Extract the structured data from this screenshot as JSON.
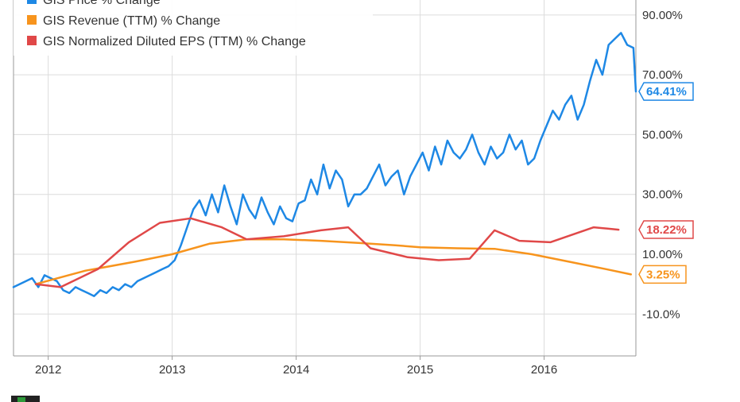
{
  "chart_data": {
    "type": "line",
    "ylim": [
      -24,
      95
    ],
    "xlim": [
      2011.72,
      2016.74
    ],
    "grid": true,
    "legend_placement": "top-left",
    "x_ticks": [
      {
        "value": 2012,
        "label": "2012"
      },
      {
        "value": 2013,
        "label": "2013"
      },
      {
        "value": 2014,
        "label": "2014"
      },
      {
        "value": 2015,
        "label": "2015"
      },
      {
        "value": 2016,
        "label": "2016"
      }
    ],
    "y_ticks": [
      {
        "value": 90,
        "label": "90.00%"
      },
      {
        "value": 70,
        "label": "70.00%"
      },
      {
        "value": 50,
        "label": "50.00%"
      },
      {
        "value": 30,
        "label": "30.00%"
      },
      {
        "value": 10,
        "label": "10.00%"
      },
      {
        "value": -10,
        "label": "-10.0%"
      }
    ],
    "series": [
      {
        "name": "GIS Price % Change",
        "color": "#1e88e5",
        "end_label": "64.41%",
        "x": [
          2011.72,
          2011.77,
          2011.82,
          2011.87,
          2011.92,
          2011.97,
          2012.02,
          2012.07,
          2012.12,
          2012.17,
          2012.22,
          2012.27,
          2012.32,
          2012.37,
          2012.42,
          2012.47,
          2012.52,
          2012.57,
          2012.62,
          2012.67,
          2012.72,
          2012.77,
          2012.82,
          2012.87,
          2012.92,
          2012.97,
          2013.02,
          2013.07,
          2013.12,
          2013.17,
          2013.22,
          2013.27,
          2013.32,
          2013.37,
          2013.42,
          2013.47,
          2013.52,
          2013.57,
          2013.62,
          2013.67,
          2013.72,
          2013.77,
          2013.82,
          2013.87,
          2013.92,
          2013.97,
          2014.02,
          2014.07,
          2014.12,
          2014.17,
          2014.22,
          2014.27,
          2014.32,
          2014.37,
          2014.42,
          2014.47,
          2014.52,
          2014.57,
          2014.62,
          2014.67,
          2014.72,
          2014.77,
          2014.82,
          2014.87,
          2014.92,
          2014.97,
          2015.02,
          2015.07,
          2015.12,
          2015.17,
          2015.22,
          2015.27,
          2015.32,
          2015.37,
          2015.42,
          2015.47,
          2015.52,
          2015.57,
          2015.62,
          2015.67,
          2015.72,
          2015.77,
          2015.82,
          2015.87,
          2015.92,
          2015.97,
          2016.02,
          2016.07,
          2016.12,
          2016.17,
          2016.22,
          2016.27,
          2016.32,
          2016.37,
          2016.42,
          2016.47,
          2016.52,
          2016.57,
          2016.62,
          2016.67,
          2016.72,
          2016.74
        ],
        "y": [
          -1,
          0,
          1,
          2,
          -1,
          3,
          2,
          1,
          -2,
          -3,
          -1,
          -2,
          -3,
          -4,
          -2,
          -3,
          -1,
          -2,
          0,
          -1,
          1,
          2,
          3,
          4,
          5,
          6,
          8,
          13,
          19,
          25,
          28,
          23,
          30,
          24,
          33,
          26,
          20,
          30,
          25,
          22,
          29,
          24,
          20,
          26,
          22,
          21,
          27,
          28,
          35,
          30,
          40,
          32,
          38,
          35,
          26,
          30,
          30,
          32,
          36,
          40,
          33,
          36,
          38,
          30,
          36,
          40,
          44,
          38,
          46,
          40,
          48,
          44,
          42,
          45,
          50,
          44,
          40,
          46,
          42,
          44,
          50,
          45,
          48,
          40,
          42,
          48,
          53,
          58,
          55,
          60,
          63,
          55,
          60,
          68,
          75,
          70,
          80,
          82,
          84,
          80,
          79,
          64.41
        ]
      },
      {
        "name": "GIS Revenue (TTM) % Change",
        "color": "#f7941d",
        "end_label": "3.25%",
        "x": [
          2011.9,
          2012.3,
          2012.7,
          2013.0,
          2013.3,
          2013.6,
          2013.9,
          2014.2,
          2014.5,
          2014.8,
          2015.0,
          2015.3,
          2015.6,
          2015.9,
          2016.2,
          2016.5,
          2016.7
        ],
        "y": [
          0,
          4.5,
          7.5,
          10,
          13.5,
          15,
          15,
          14.5,
          13.8,
          13,
          12.3,
          12,
          11.8,
          10,
          7.5,
          5,
          3.25
        ]
      },
      {
        "name": "GIS Normalized Diluted EPS (TTM) % Change",
        "color": "#e04848",
        "end_label": "18.22%",
        "x": [
          2011.9,
          2012.1,
          2012.4,
          2012.65,
          2012.9,
          2013.15,
          2013.4,
          2013.6,
          2013.9,
          2014.2,
          2014.42,
          2014.6,
          2014.9,
          2015.15,
          2015.4,
          2015.6,
          2015.8,
          2016.05,
          2016.4,
          2016.6
        ],
        "y": [
          0,
          -1,
          5,
          14,
          20.5,
          22,
          19,
          15,
          16,
          18,
          19,
          12,
          9,
          8,
          8.5,
          18,
          14.5,
          14,
          19,
          18.22
        ]
      }
    ]
  }
}
